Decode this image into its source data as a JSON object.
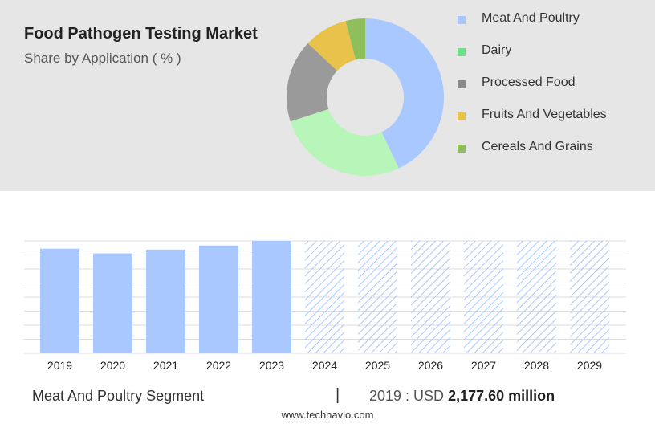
{
  "title": "Food Pathogen Testing Market",
  "subtitle": "Share by Application ( % )",
  "colors": {
    "panel_background": "#e6e6e6",
    "bar_fill": "#a8c8ff",
    "forecast_hatch": "#a8c8ff",
    "grid": "#dddddd"
  },
  "chart_data": [
    {
      "type": "pie",
      "variant": "donut",
      "categories": [
        "Meat And Poultry",
        "Dairy",
        "Processed Food",
        "Fruits And Vegetables",
        "Cereals And Grains"
      ],
      "values": [
        43,
        27,
        17,
        9,
        4
      ],
      "colors": [
        "#a8c8ff",
        "#b8f5b8",
        "#9a9a9a",
        "#e8c24a",
        "#8fbf5a"
      ],
      "legend_position": "right",
      "legend_swatch_colors": [
        "#a8c8ff",
        "#6de08c",
        "#8a8a8a",
        "#e8c24a",
        "#8fbf5a"
      ]
    },
    {
      "type": "bar",
      "categories": [
        "2019",
        "2020",
        "2021",
        "2022",
        "2023",
        "2024",
        "2025",
        "2026",
        "2027",
        "2028",
        "2029"
      ],
      "series": [
        {
          "values": [
            2177.6,
            2080,
            2160,
            2245,
            2340,
            null,
            null,
            null,
            null,
            null,
            null
          ]
        }
      ],
      "forecast_categories": [
        "2024",
        "2025",
        "2026",
        "2027",
        "2028",
        "2029"
      ],
      "forecast_style": "hatched",
      "ylim": [
        0,
        2340
      ],
      "grid": true
    }
  ],
  "footer": {
    "segment_label": "Meat And Poultry Segment",
    "divider": "|",
    "year_label": "2019 : USD",
    "value_label": "2,177.60 million"
  },
  "source": "www.technavio.com"
}
